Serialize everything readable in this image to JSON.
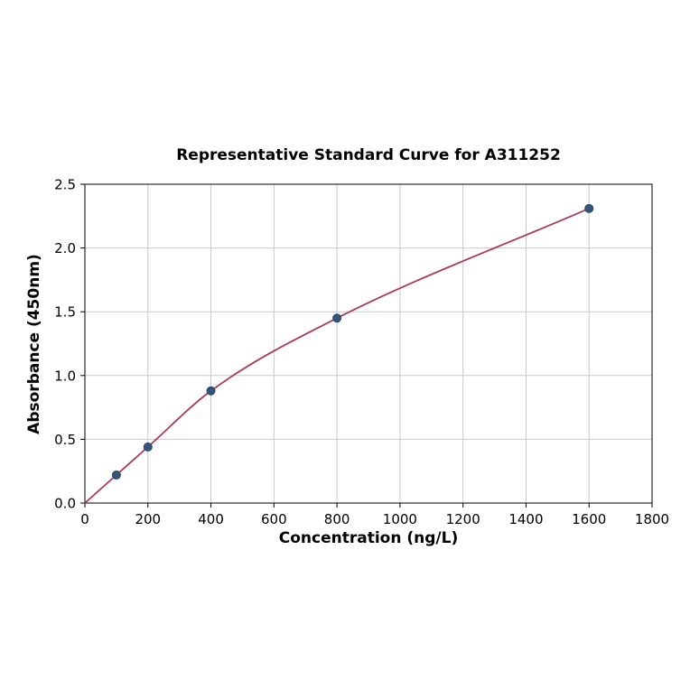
{
  "chart_data": {
    "type": "scatter",
    "title": "Representative Standard Curve for A311252",
    "xlabel": "Concentration (ng/L)",
    "ylabel": "Absorbance (450nm)",
    "xlim": [
      0,
      1800
    ],
    "ylim": [
      0,
      2.5
    ],
    "xticks": [
      0,
      200,
      400,
      600,
      800,
      1000,
      1200,
      1400,
      1600,
      1800
    ],
    "yticks": [
      0.0,
      0.5,
      1.0,
      1.5,
      2.0,
      2.5
    ],
    "grid": true,
    "legend": "none",
    "points": {
      "x": [
        100,
        200,
        400,
        800,
        1600
      ],
      "y": [
        0.22,
        0.44,
        0.88,
        1.45,
        2.31
      ]
    },
    "curve": {
      "x": [
        0,
        100,
        200,
        400,
        800,
        1600
      ],
      "y": [
        0.0,
        0.22,
        0.44,
        0.88,
        1.45,
        2.31
      ]
    },
    "colors": {
      "curve": "#a93a55",
      "points": "#33557a",
      "point_edge": "#2a4663",
      "grid": "#c9c9c9",
      "axis": "#000000",
      "text": "#000000"
    }
  }
}
